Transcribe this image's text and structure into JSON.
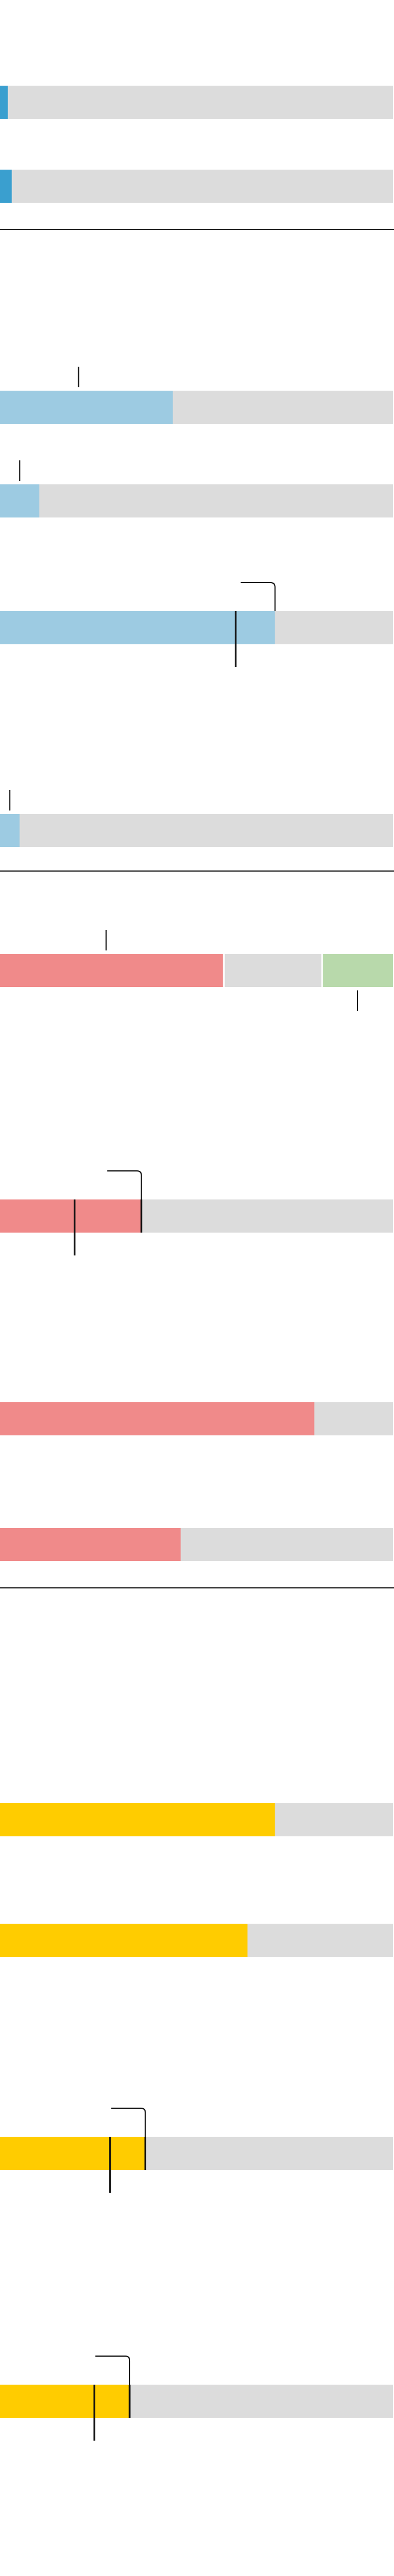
{
  "palette": {
    "track": "#dcdcdc",
    "blue_dark": "#3a9fcf",
    "blue": "#9dcbe2",
    "red": "#f08a8a",
    "green": "#b8d9ab",
    "yellow": "#ffcc00",
    "marker": "#111111",
    "divider": "#222222"
  },
  "chart_data": {
    "type": "bar",
    "orientation": "horizontal",
    "stacked": true,
    "value_scale": [
      0,
      100
    ],
    "sections": [
      {
        "name": "",
        "bars": [
          {
            "segments": [
              {
                "value": 2,
                "color": "blue_dark"
              }
            ]
          },
          {
            "segments": [
              {
                "value": 3,
                "color": "blue_dark"
              }
            ]
          }
        ]
      },
      {
        "name": "",
        "bars": [
          {
            "segments": [
              {
                "value": 44,
                "color": "blue"
              }
            ],
            "annotation": {
              "at": 20,
              "style": "tick-above"
            }
          },
          {
            "segments": [
              {
                "value": 10,
                "color": "blue"
              }
            ],
            "annotation": {
              "at": 5,
              "style": "tick-above"
            }
          },
          {
            "segments": [
              {
                "value": 70,
                "color": "blue"
              }
            ],
            "markers": [
              60
            ],
            "annotation": {
              "at": 60,
              "style": "leader-above"
            }
          },
          {
            "segments": [
              {
                "value": 5,
                "color": "blue"
              }
            ],
            "annotation": {
              "at": 2.5,
              "style": "tick-above"
            }
          }
        ]
      },
      {
        "name": "",
        "bars": [
          {
            "segments": [
              {
                "value": 57,
                "color": "red"
              },
              {
                "value": 25,
                "color": "track"
              },
              {
                "value": 18,
                "color": "green"
              }
            ],
            "annotation": {
              "at": 27,
              "style": "tick-above"
            },
            "annotation_below": {
              "at": 91,
              "style": "tick-below"
            }
          },
          {
            "segments": [
              {
                "value": 36,
                "color": "red"
              }
            ],
            "markers": [
              19,
              36
            ],
            "annotation": {
              "at": 19,
              "style": "leader-above"
            }
          },
          {
            "segments": [
              {
                "value": 80,
                "color": "red"
              }
            ]
          },
          {
            "segments": [
              {
                "value": 46,
                "color": "red"
              }
            ]
          }
        ]
      },
      {
        "name": "",
        "bars": [
          {
            "segments": [
              {
                "value": 70,
                "color": "yellow"
              }
            ]
          },
          {
            "segments": [
              {
                "value": 63,
                "color": "yellow"
              }
            ]
          },
          {
            "segments": [
              {
                "value": 37,
                "color": "yellow"
              }
            ],
            "markers": [
              28,
              37
            ],
            "annotation": {
              "at": 28,
              "style": "leader-above"
            }
          },
          {
            "segments": [
              {
                "value": 33,
                "color": "yellow"
              }
            ],
            "markers": [
              24,
              33
            ],
            "annotation": {
              "at": 24,
              "style": "leader-above"
            }
          }
        ]
      }
    ]
  }
}
